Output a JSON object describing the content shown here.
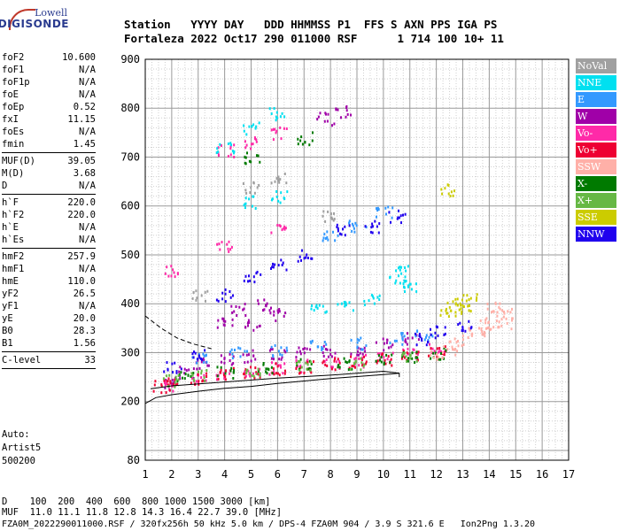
{
  "logo": {
    "line1": "Lowell",
    "line2": "DIGISONDE"
  },
  "header": {
    "row1": "Station   YYYY DAY   DDD HHMMSS P1  FFS S AXN PPS IGA PS",
    "row2": "Fortaleza 2022 Oct17 290 011000 RSF      1 714 100 10+ 11"
  },
  "params": [
    {
      "k": "foF2",
      "v": "10.600"
    },
    {
      "k": "foF1",
      "v": "N/A"
    },
    {
      "k": "foF1p",
      "v": "N/A"
    },
    {
      "k": "foE",
      "v": "N/A"
    },
    {
      "k": "foEp",
      "v": "0.52"
    },
    {
      "k": "fxI",
      "v": "11.15"
    },
    {
      "k": "foEs",
      "v": "N/A"
    },
    {
      "k": "fmin",
      "v": "1.45"
    },
    {
      "sep": true
    },
    {
      "k": "MUF(D)",
      "v": "39.05"
    },
    {
      "k": "M(D)",
      "v": "3.68"
    },
    {
      "k": "D",
      "v": "N/A"
    },
    {
      "sep": true
    },
    {
      "k": "h`F",
      "v": "220.0"
    },
    {
      "k": "h`F2",
      "v": "220.0"
    },
    {
      "k": "h`E",
      "v": "N/A"
    },
    {
      "k": "h`Es",
      "v": "N/A"
    },
    {
      "sep": true
    },
    {
      "k": "hmF2",
      "v": "257.9"
    },
    {
      "k": "hmF1",
      "v": "N/A"
    },
    {
      "k": "hmE",
      "v": "110.0"
    },
    {
      "k": "yF2",
      "v": "26.5"
    },
    {
      "k": "yF1",
      "v": "N/A"
    },
    {
      "k": "yE",
      "v": "20.0"
    },
    {
      "k": "B0",
      "v": "28.3"
    },
    {
      "k": "B1",
      "v": "1.56"
    },
    {
      "sep": true
    },
    {
      "k": "C-level",
      "v": "33"
    },
    {
      "sep": true
    }
  ],
  "auto": [
    "Auto:",
    "Artist5",
    "500200"
  ],
  "legend": [
    {
      "label": "NoVal",
      "color": "#a0a0a0"
    },
    {
      "label": "NNE",
      "color": "#00e0f0"
    },
    {
      "label": "E",
      "color": "#3399ff"
    },
    {
      "label": "W",
      "color": "#a000a8"
    },
    {
      "label": "Vo-",
      "color": "#ff2aa8"
    },
    {
      "label": "Vo+",
      "color": "#ee0033"
    },
    {
      "label": "SSW",
      "color": "#ffb0a8"
    },
    {
      "label": "X-",
      "color": "#007a00"
    },
    {
      "label": "X+",
      "color": "#66b844"
    },
    {
      "label": "SSE",
      "color": "#cccc00"
    },
    {
      "label": "NNW",
      "color": "#2000ee"
    }
  ],
  "bottom": {
    "line1": "D    100  200  400  600  800 1000 1500 3000 [km]",
    "line2": "MUF  11.0 11.1 11.8 12.8 14.3 16.4 22.7 39.0 [MHz]",
    "line3": "FZA0M_2022290011000.RSF / 320fx256h 50 kHz 5.0 km / DPS-4 FZA0M 904 / 3.9 S 321.6 E   Ion2Png 1.3.20"
  },
  "chart_data": {
    "type": "scatter",
    "xlim": [
      1,
      17
    ],
    "ylim": [
      80,
      900
    ],
    "x_ticks": [
      "1",
      "2",
      "3",
      "4",
      "5",
      "6",
      "7",
      "8",
      "9",
      "10",
      "11",
      "12",
      "13",
      "14",
      "15",
      "16",
      "17"
    ],
    "y_ticks": [
      "80",
      "200",
      "300",
      "400",
      "500",
      "600",
      "700",
      "800",
      "900"
    ],
    "grid": true,
    "series": [
      {
        "name": "W",
        "color": "#a000a8",
        "points": [
          [
            2.0,
            240
          ],
          [
            2.5,
            262
          ],
          [
            3.2,
            280
          ],
          [
            4.0,
            290
          ],
          [
            5.0,
            295
          ],
          [
            6.0,
            298
          ],
          [
            7.0,
            300
          ],
          [
            8.0,
            305
          ],
          [
            9.0,
            310
          ],
          [
            10.0,
            320
          ],
          [
            11.0,
            330
          ],
          [
            4.0,
            360
          ],
          [
            4.5,
            390
          ],
          [
            5.0,
            360
          ],
          [
            5.5,
            400
          ],
          [
            6.0,
            380
          ],
          [
            7.8,
            780
          ],
          [
            8.5,
            795
          ]
        ]
      },
      {
        "name": "Vo-",
        "color": "#ff2aa8",
        "points": [
          [
            2.0,
            235
          ],
          [
            3.0,
            250
          ],
          [
            4.0,
            255
          ],
          [
            5.0,
            262
          ],
          [
            6.0,
            270
          ],
          [
            7.0,
            275
          ],
          [
            8.0,
            280
          ],
          [
            9.0,
            285
          ],
          [
            10.0,
            292
          ],
          [
            11.0,
            300
          ],
          [
            12.0,
            310
          ],
          [
            4.0,
            715
          ],
          [
            5.0,
            730
          ],
          [
            6.0,
            750
          ],
          [
            2.0,
            470
          ],
          [
            4.0,
            520
          ],
          [
            6.0,
            555
          ]
        ]
      },
      {
        "name": "Vo+",
        "color": "#ee0033",
        "points": [
          [
            1.6,
            232
          ],
          [
            2.0,
            238
          ],
          [
            3.0,
            250
          ],
          [
            4.0,
            258
          ],
          [
            5.0,
            262
          ],
          [
            6.0,
            268
          ],
          [
            7.0,
            272
          ],
          [
            8.0,
            278
          ],
          [
            9.0,
            282
          ],
          [
            10.0,
            288
          ],
          [
            11.0,
            295
          ],
          [
            12.0,
            305
          ]
        ]
      },
      {
        "name": "E",
        "color": "#3399ff",
        "points": [
          [
            3.0,
            290
          ],
          [
            4.5,
            300
          ],
          [
            6.0,
            306
          ],
          [
            7.5,
            315
          ],
          [
            9.0,
            320
          ],
          [
            10.5,
            330
          ],
          [
            11.5,
            340
          ],
          [
            8.0,
            540
          ],
          [
            9.0,
            560
          ],
          [
            10.0,
            590
          ]
        ]
      },
      {
        "name": "NNE",
        "color": "#00e0f0",
        "points": [
          [
            4.0,
            720
          ],
          [
            5.0,
            760
          ],
          [
            6.0,
            790
          ],
          [
            10.5,
            445
          ],
          [
            10.7,
            470
          ],
          [
            11.0,
            440
          ],
          [
            7.5,
            390
          ],
          [
            8.5,
            400
          ],
          [
            9.5,
            410
          ],
          [
            5.0,
            610
          ],
          [
            6.0,
            620
          ]
        ]
      },
      {
        "name": "X-",
        "color": "#007a00",
        "points": [
          [
            2.5,
            250
          ],
          [
            4.0,
            262
          ],
          [
            5.5,
            270
          ],
          [
            7.0,
            276
          ],
          [
            8.5,
            280
          ],
          [
            10.0,
            286
          ],
          [
            11.0,
            292
          ],
          [
            12.0,
            300
          ],
          [
            5.0,
            700
          ],
          [
            7.0,
            740
          ]
        ]
      },
      {
        "name": "X+",
        "color": "#66b844",
        "points": [
          [
            2.0,
            245
          ],
          [
            3.0,
            255
          ],
          [
            5.0,
            265
          ],
          [
            7.0,
            272
          ],
          [
            9.0,
            280
          ],
          [
            11.0,
            290
          ]
        ]
      },
      {
        "name": "SSW",
        "color": "#ffb0a8",
        "points": [
          [
            12.0,
            300
          ],
          [
            12.8,
            325
          ],
          [
            13.5,
            340
          ],
          [
            14.0,
            350
          ],
          [
            14.5,
            360
          ],
          [
            14.6,
            380
          ],
          [
            13.8,
            360
          ],
          [
            14.2,
            395
          ],
          [
            12.5,
            310
          ]
        ]
      },
      {
        "name": "SSE",
        "color": "#cccc00",
        "points": [
          [
            12.4,
            385
          ],
          [
            12.7,
            395
          ],
          [
            13.0,
            400
          ],
          [
            13.2,
            410
          ],
          [
            12.4,
            635
          ]
        ]
      },
      {
        "name": "NNW",
        "color": "#2000ee",
        "points": [
          [
            2.0,
            270
          ],
          [
            3.0,
            300
          ],
          [
            4.0,
            420
          ],
          [
            5.0,
            460
          ],
          [
            6.0,
            480
          ],
          [
            7.0,
            500
          ],
          [
            8.5,
            555
          ],
          [
            9.5,
            560
          ],
          [
            10.5,
            580
          ],
          [
            11.5,
            330
          ],
          [
            12.0,
            345
          ],
          [
            13.0,
            355
          ]
        ]
      },
      {
        "name": "NoVal",
        "color": "#a0a0a0",
        "points": [
          [
            3.0,
            420
          ],
          [
            5.0,
            640
          ],
          [
            6.0,
            660
          ],
          [
            8.0,
            580
          ]
        ]
      }
    ]
  }
}
